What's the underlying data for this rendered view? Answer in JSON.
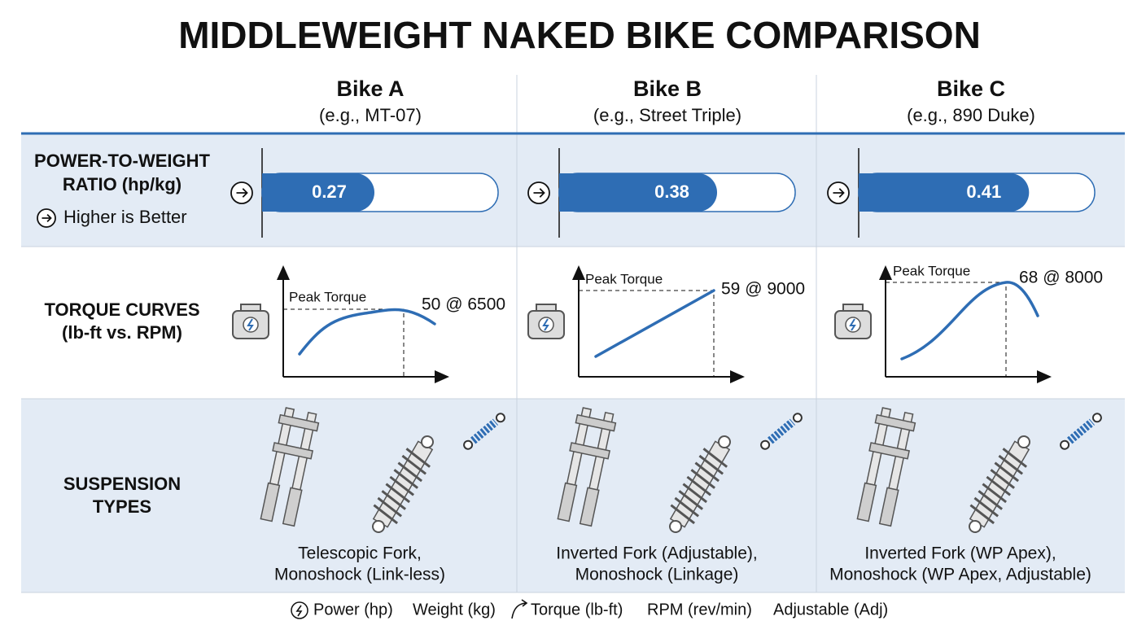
{
  "title": "MIDDLEWEIGHT NAKED BIKE COMPARISON",
  "columns": [
    {
      "name": "Bike A",
      "example": "(e.g., MT-07)"
    },
    {
      "name": "Bike B",
      "example": "(e.g., Street Triple)"
    },
    {
      "name": "Bike C",
      "example": "(e.g., 890 Duke)"
    }
  ],
  "rows": {
    "power": {
      "label_lines": [
        "POWER-TO-WEIGHT",
        "RATIO (hp/kg)"
      ],
      "note": "Higher is Better",
      "values": [
        0.27,
        0.38,
        0.41
      ]
    },
    "torque": {
      "label_lines": [
        "TORQUE CURVES",
        "(lb-ft vs. RPM)"
      ],
      "peak_label": "Peak Torque",
      "peaks": [
        "50 @ 6500",
        "59 @ 9000",
        "68 @ 8000"
      ]
    },
    "suspension": {
      "label_lines": [
        "SUSPENSION",
        "TYPES"
      ],
      "types": [
        [
          "Telescopic Fork,",
          "Monoshock (Link-less)"
        ],
        [
          "Inverted Fork (Adjustable),",
          "Monoshock (Linkage)"
        ],
        [
          "Inverted Fork (WP Apex),",
          "Monoshock (WP Apex, Adjustable)"
        ]
      ]
    }
  },
  "legend": [
    "Power (hp)",
    "Weight (kg)",
    "Torque (lb-ft)",
    "RPM (rev/min)",
    "Adjustable (Adj)"
  ]
}
